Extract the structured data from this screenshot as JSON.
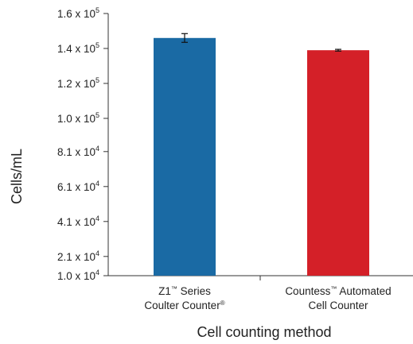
{
  "chart_data": {
    "type": "bar",
    "xlabel": "Cell counting method",
    "ylabel": "Cells/mL",
    "ylim": [
      10000,
      160000
    ],
    "y_ticks": [
      {
        "value": 10000,
        "mantissa": "1.0 x 10",
        "exp": "4"
      },
      {
        "value": 21000,
        "mantissa": "2.1 x 10",
        "exp": "4"
      },
      {
        "value": 41000,
        "mantissa": "4.1 x 10",
        "exp": "4"
      },
      {
        "value": 61000,
        "mantissa": "6.1 x 10",
        "exp": "4"
      },
      {
        "value": 81000,
        "mantissa": "8.1 x 10",
        "exp": "4"
      },
      {
        "value": 100000,
        "mantissa": "1.0 x 10",
        "exp": "5"
      },
      {
        "value": 120000,
        "mantissa": "1.2 x 10",
        "exp": "5"
      },
      {
        "value": 140000,
        "mantissa": "1.4 x 10",
        "exp": "5"
      },
      {
        "value": 160000,
        "mantissa": "1.6 x 10",
        "exp": "5"
      }
    ],
    "categories": [
      {
        "name": "Z1™ Series Coulter Counter®",
        "lines": [
          [
            {
              "t": "Z1"
            },
            {
              "t": "™",
              "sup": true
            },
            {
              "t": " Series"
            }
          ],
          [
            {
              "t": "Coulter Counter"
            },
            {
              "t": "®",
              "sup": true
            }
          ]
        ]
      },
      {
        "name": "Countess™ Automated Cell Counter",
        "lines": [
          [
            {
              "t": "Countess"
            },
            {
              "t": "™",
              "sup": true
            },
            {
              "t": " Automated"
            }
          ],
          [
            {
              "t": "Cell Counter"
            }
          ]
        ]
      }
    ],
    "values": [
      146000,
      139000
    ],
    "errors": [
      2500,
      500
    ],
    "colors": [
      "#1a6aa4",
      "#d42028"
    ],
    "grid": false,
    "legend": "none"
  }
}
